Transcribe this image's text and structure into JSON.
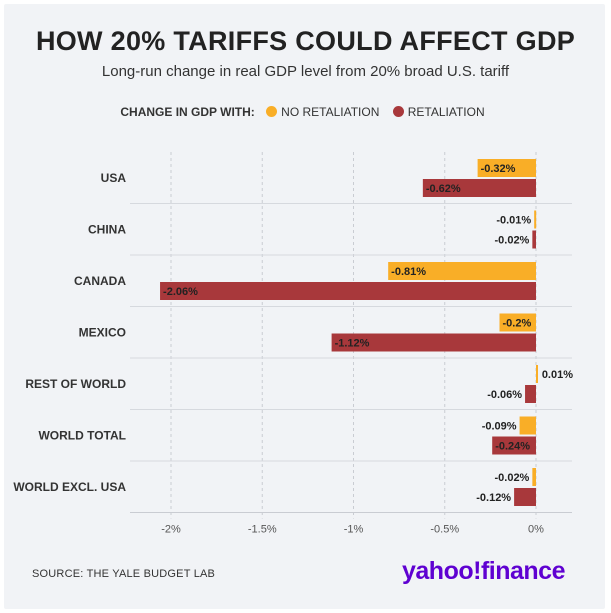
{
  "header": {
    "title": "HOW 20% TARIFFS COULD AFFECT GDP",
    "subtitle": "Long-run change in real GDP level from 20% broad U.S. tariff"
  },
  "legend": {
    "lead": "CHANGE IN GDP WITH:",
    "items": [
      {
        "label": "NO RETALIATION",
        "color": "#f9ae27"
      },
      {
        "label": "RETALIATION",
        "color": "#a8383b"
      }
    ]
  },
  "footer": {
    "source": "SOURCE: THE YALE BUDGET LAB",
    "brand": "yahoo!finance"
  },
  "chart_data": {
    "type": "bar",
    "orientation": "horizontal",
    "categories": [
      "USA",
      "CHINA",
      "CANADA",
      "MEXICO",
      "REST OF WORLD",
      "WORLD TOTAL",
      "WORLD EXCL. USA"
    ],
    "series": [
      {
        "name": "NO RETALIATION",
        "color": "#f9ae27",
        "values": [
          -0.32,
          -0.01,
          -0.81,
          -0.2,
          0.01,
          -0.09,
          -0.02
        ],
        "labels": [
          "-0.32%",
          "-0.01%",
          "-0.81%",
          "-0.2%",
          "0.01%",
          "-0.09%",
          "-0.02%"
        ]
      },
      {
        "name": "RETALIATION",
        "color": "#a8383b",
        "values": [
          -0.62,
          -0.02,
          -2.06,
          -1.12,
          -0.06,
          -0.24,
          -0.12
        ],
        "labels": [
          "-0.62%",
          "-0.02%",
          "-2.06%",
          "-1.12%",
          "-0.06%",
          "-0.24%",
          "-0.12%"
        ]
      }
    ],
    "xlim": [
      -2.2,
      0.2
    ],
    "xticks": [
      -2,
      -1.5,
      -1,
      -0.5,
      0
    ],
    "xtick_labels": [
      "-2%",
      "-1.5%",
      "-1%",
      "-0.5%",
      "0%"
    ],
    "grid": true
  }
}
